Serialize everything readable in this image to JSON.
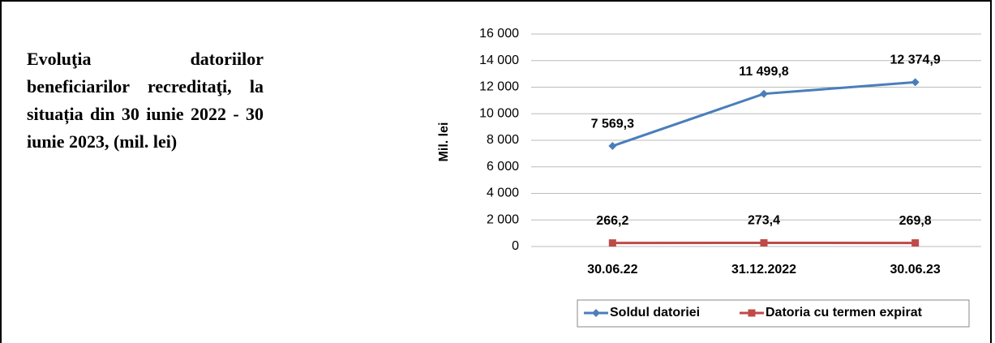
{
  "chart_data": {
    "type": "line",
    "title": "Evoluţia datoriilor beneficiarilor recreditaţi, la situația din  30 iunie 2022 - 30 iunie 2023, (mil. lei)",
    "y_label": "Mil. lei",
    "categories": [
      "30.06.22",
      "31.12.2022",
      "30.06.23"
    ],
    "series": [
      {
        "name": "Soldul datoriei",
        "color": "#4a7ebb",
        "values": [
          7569.3,
          11499.8,
          12374.9
        ],
        "value_labels": [
          "7 569,3",
          "11 499,8",
          "12 374,9"
        ]
      },
      {
        "name": "Datoria cu termen expirat",
        "color": "#be4b48",
        "values": [
          266.2,
          273.4,
          269.8
        ],
        "value_labels": [
          "266,2",
          "273,4",
          "269,8"
        ]
      }
    ],
    "ylim": [
      0,
      16000
    ],
    "yticks": [
      0,
      {
        "value": 2000,
        "label": "2 000"
      },
      {
        "value": 4000,
        "label": "4 000"
      },
      {
        "value": 6000,
        "label": "6 000"
      },
      {
        "value": 8000,
        "label": "8 000"
      },
      {
        "value": 10000,
        "label": "10 000"
      },
      {
        "value": 12000,
        "label": "12 000"
      },
      {
        "value": 14000,
        "label": "14 000"
      },
      {
        "value": 16000,
        "label": "16 000"
      }
    ],
    "grid": true,
    "legend": "bottom"
  }
}
